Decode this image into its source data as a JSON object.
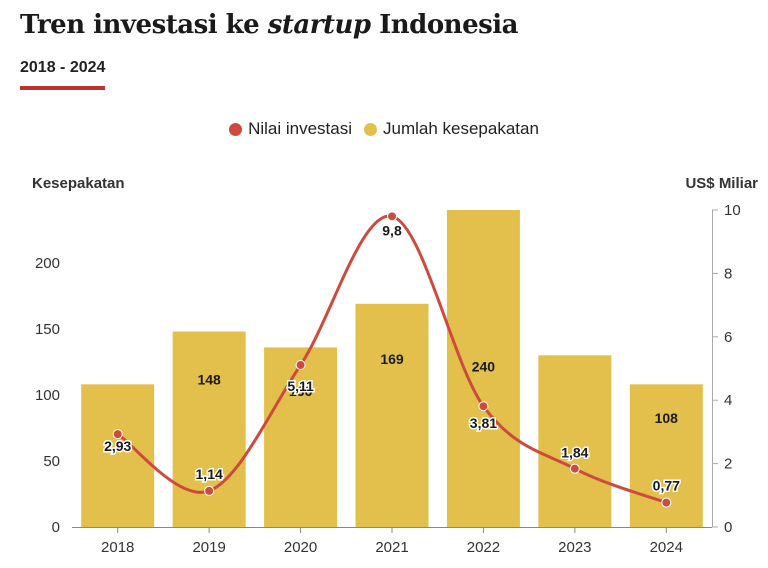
{
  "header": {
    "title_prefix": "Tren investasi ke ",
    "title_emphasis": "startup",
    "title_suffix": " Indonesia",
    "subtitle": "2018 - 2024",
    "accent_color": "#c0302f"
  },
  "chart_data": {
    "type": "bar+line",
    "legend": [
      {
        "label": "Nilai investasi",
        "color": "#cc4b3e",
        "shape": "circle"
      },
      {
        "label": "Jumlah kesepakatan",
        "color": "#e3c04c",
        "shape": "circle"
      }
    ],
    "categories": [
      "2018",
      "2019",
      "2020",
      "2021",
      "2022",
      "2023",
      "2024"
    ],
    "bars": {
      "name": "Jumlah kesepakatan",
      "axis": "left",
      "color": "#e3c04c",
      "values": [
        108,
        148,
        136,
        169,
        240,
        130,
        108
      ],
      "labels": [
        "",
        "148",
        "136",
        "169",
        "240",
        "",
        "108"
      ]
    },
    "line": {
      "name": "Nilai investasi",
      "axis": "right",
      "color": "#cc4b3e",
      "values": [
        2.93,
        1.14,
        5.11,
        9.8,
        3.81,
        1.84,
        0.77
      ],
      "labels": [
        "2,93",
        "1,14",
        "5,11",
        "9,8",
        "3,81",
        "1,84",
        "0,77"
      ]
    },
    "left_axis": {
      "title": "Kesepakatan",
      "range": [
        0,
        240
      ],
      "ticks": [
        0,
        50,
        100,
        150,
        200
      ],
      "tick_labels": [
        "0",
        "50",
        "100",
        "150",
        "200"
      ]
    },
    "right_axis": {
      "title": "US$ Miliar",
      "range": [
        0,
        10
      ],
      "ticks": [
        0,
        2,
        4,
        6,
        8,
        10
      ],
      "tick_labels": [
        "0",
        "2",
        "4",
        "6",
        "8",
        "10"
      ]
    },
    "grid": false
  }
}
